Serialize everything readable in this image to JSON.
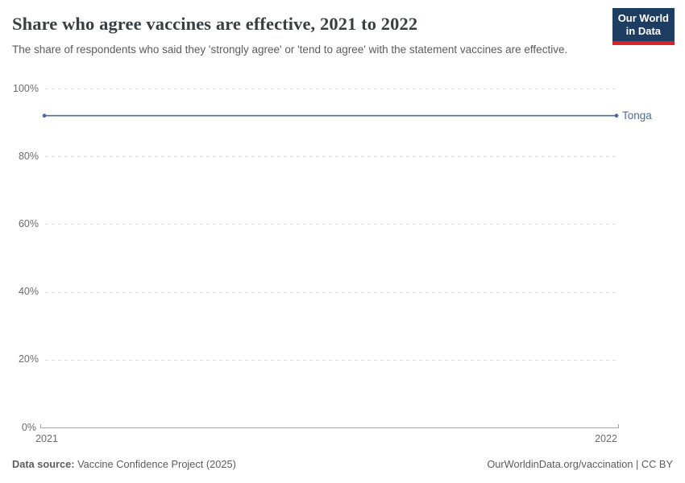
{
  "header": {
    "title": "Share who agree vaccines are effective, 2021 to 2022",
    "subtitle": "The share of respondents who said they 'strongly agree' or 'tend to agree' with the statement vaccines are effective."
  },
  "logo": {
    "line1": "Our World",
    "line2": "in Data",
    "bg_color": "#1d3d63",
    "accent_color": "#d8232a"
  },
  "chart_data": {
    "type": "line",
    "title": "Share who agree vaccines are effective, 2021 to 2022",
    "x": [
      2021,
      2022
    ],
    "series": [
      {
        "name": "Tonga",
        "values": [
          92,
          92
        ],
        "color": "#4a6ca8"
      }
    ],
    "ylim": [
      0,
      100
    ],
    "yticks": [
      0,
      20,
      40,
      60,
      80,
      100
    ],
    "ytick_suffix": "%",
    "grid": "dashed-horizontal",
    "legend_position": "end-of-line-label",
    "axis_color": "#a3a3a3",
    "grid_color": "#dcdcdc",
    "tick_label_color": "#6b6b6b"
  },
  "footer": {
    "source_label": "Data source:",
    "source_value": "Vaccine Confidence Project (2025)",
    "link": "OurWorldinData.org/vaccination | CC BY"
  }
}
